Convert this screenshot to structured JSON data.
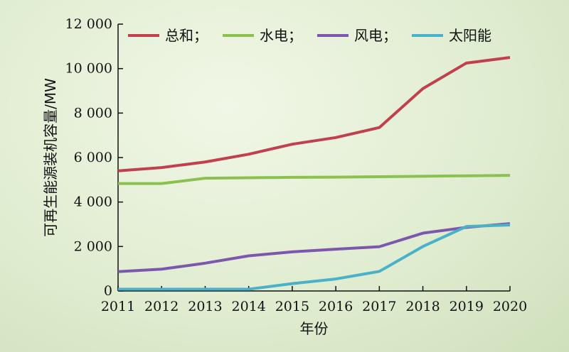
{
  "chart_data": {
    "type": "line",
    "xlabel": "年份",
    "ylabel": "可再生能源装机容量/MW",
    "x": [
      2011,
      2012,
      2013,
      2014,
      2015,
      2016,
      2017,
      2018,
      2019,
      2020
    ],
    "ylim": [
      0,
      12000
    ],
    "y_ticks": [
      0,
      2000,
      4000,
      6000,
      8000,
      10000,
      12000
    ],
    "y_tick_labels": [
      "0",
      "2 000",
      "4 000",
      "6 000",
      "8 000",
      "10 000",
      "12 000"
    ],
    "grid": false,
    "legend_position": "top",
    "series": [
      {
        "name": "总和；",
        "color": "#c0404e",
        "values": [
          5400,
          5550,
          5800,
          6150,
          6600,
          6900,
          7350,
          9100,
          10250,
          10500
        ]
      },
      {
        "name": "水电；",
        "color": "#8cc152",
        "values": [
          4830,
          4830,
          5070,
          5090,
          5110,
          5120,
          5140,
          5160,
          5180,
          5200
        ]
      },
      {
        "name": "风电；",
        "color": "#7d56ae",
        "values": [
          870,
          980,
          1250,
          1580,
          1760,
          1880,
          1990,
          2600,
          2860,
          3030
        ]
      },
      {
        "name": "太阳能",
        "color": "#4bb1c9",
        "values": [
          80,
          80,
          80,
          80,
          330,
          540,
          880,
          2000,
          2900,
          2970
        ]
      }
    ]
  }
}
